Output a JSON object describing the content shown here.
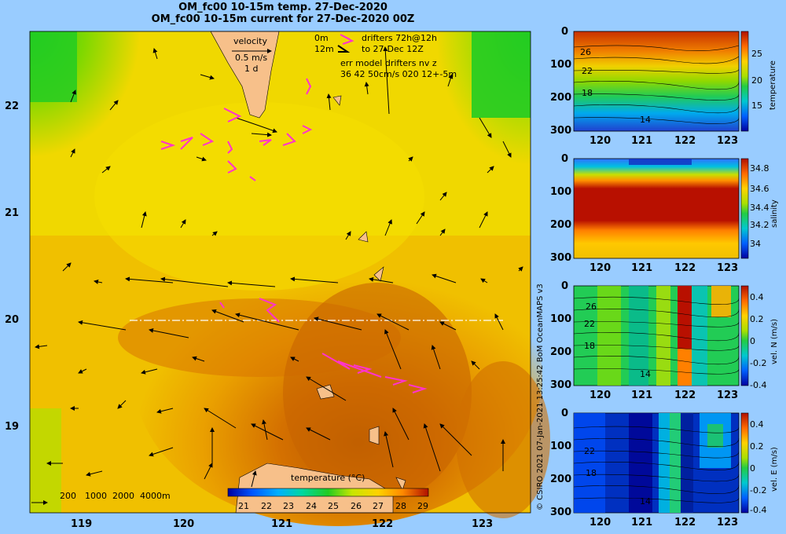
{
  "header": {
    "title_line1": "OM_fc00 10-15m temp. 27-Dec-2020",
    "title_line2": "OM_fc00 10-15m current for 27-Dec-2020 00Z"
  },
  "map": {
    "lat_ticks": [
      "22",
      "21",
      "20",
      "19"
    ],
    "lon_ticks": [
      "119",
      "120",
      "121",
      "122",
      "123"
    ],
    "velocity_key": {
      "title": "velocity",
      "speed": "0.5 m/s",
      "duration": "1 d"
    },
    "drifter_legend": {
      "line1_depth": "0m",
      "line1_text": "drifters 72h@12h",
      "line2_depth": "12m",
      "line2_text": "to 27-Dec 12Z",
      "line3": "err model drifters nv z",
      "line4": "36 42 50cm/s 020 12+-5m"
    },
    "depth_legend": [
      "200",
      "1000",
      "2000",
      "4000m"
    ],
    "colorbar": {
      "title": "temperature (°C)",
      "ticks": [
        "21",
        "22",
        "23",
        "24",
        "25",
        "26",
        "27",
        "28",
        "29"
      ]
    }
  },
  "panels": [
    {
      "name": "temperature",
      "ylabel": "temperature",
      "cbar_ticks": [
        "25",
        "20",
        "15"
      ],
      "contour_labels": [
        "26",
        "22",
        "18",
        "14"
      ]
    },
    {
      "name": "salinity",
      "ylabel": "salinity",
      "cbar_ticks": [
        "34.8",
        "34.6",
        "34.4",
        "34.2",
        "34"
      ],
      "contour_labels": []
    },
    {
      "name": "vel-n",
      "ylabel": "vel. N (m/s)",
      "cbar_ticks": [
        "0.4",
        "0.2",
        "0",
        "-0.2",
        "-0.4"
      ],
      "contour_labels": [
        "26",
        "22",
        "18",
        "14"
      ]
    },
    {
      "name": "vel-e",
      "ylabel": "vel. E (m/s)",
      "cbar_ticks": [
        "0.4",
        "0.2",
        "0",
        "-0.2",
        "-0.4"
      ],
      "contour_labels": [
        "22",
        "18",
        "14"
      ]
    }
  ],
  "panel_axes": {
    "depth_ticks": [
      "0",
      "100",
      "200",
      "300"
    ],
    "lon_ticks": [
      "120",
      "121",
      "122",
      "123"
    ]
  },
  "credit": "© CSIRO 2021   07-Jan-2021 13:25:42 BoM OceanMAPS v3",
  "colors": {
    "background": "#99ccff",
    "land": "#f7c08a",
    "drifter": "#ff33cc"
  }
}
